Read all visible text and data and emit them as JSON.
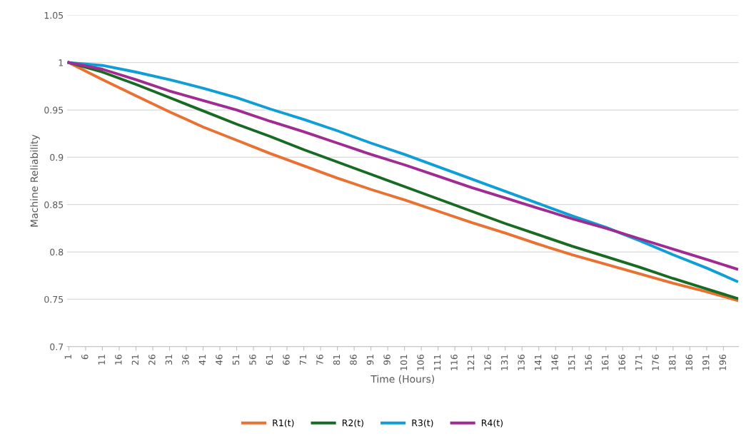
{
  "chart_data": {
    "type": "line",
    "xlabel": "Time (Hours)",
    "ylabel": "Machine Reliability",
    "x": [
      1,
      11,
      21,
      31,
      41,
      51,
      61,
      71,
      81,
      91,
      101,
      111,
      121,
      131,
      141,
      151,
      161,
      171,
      181,
      191,
      200
    ],
    "series": [
      {
        "name": "R1(t)",
        "color": "#e97132",
        "values": [
          1.0,
          0.982,
          0.965,
          0.948,
          0.932,
          0.918,
          0.904,
          0.891,
          0.878,
          0.866,
          0.855,
          0.843,
          0.831,
          0.82,
          0.808,
          0.797,
          0.787,
          0.777,
          0.767,
          0.758,
          0.749
        ]
      },
      {
        "name": "R2(t)",
        "color": "#196b24",
        "values": [
          1.0,
          0.99,
          0.977,
          0.963,
          0.949,
          0.935,
          0.922,
          0.908,
          0.895,
          0.882,
          0.869,
          0.856,
          0.843,
          0.83,
          0.818,
          0.806,
          0.795,
          0.784,
          0.772,
          0.761,
          0.751
        ]
      },
      {
        "name": "R3(t)",
        "color": "#0f9ed5",
        "values": [
          1.0,
          0.997,
          0.99,
          0.982,
          0.973,
          0.963,
          0.951,
          0.94,
          0.928,
          0.915,
          0.903,
          0.89,
          0.877,
          0.864,
          0.851,
          0.838,
          0.826,
          0.812,
          0.797,
          0.783,
          0.769
        ]
      },
      {
        "name": "R4(t)",
        "color": "#a02b93",
        "values": [
          1.0,
          0.993,
          0.982,
          0.97,
          0.96,
          0.95,
          0.938,
          0.927,
          0.915,
          0.903,
          0.892,
          0.88,
          0.868,
          0.857,
          0.846,
          0.835,
          0.825,
          0.814,
          0.803,
          0.792,
          0.782
        ]
      }
    ],
    "xlim": [
      0.5,
      200.5
    ],
    "xticks": [
      1,
      6,
      11,
      16,
      21,
      26,
      31,
      36,
      41,
      46,
      51,
      56,
      61,
      66,
      71,
      76,
      81,
      86,
      91,
      96,
      101,
      106,
      111,
      116,
      121,
      126,
      131,
      136,
      141,
      146,
      151,
      156,
      161,
      166,
      171,
      176,
      181,
      186,
      191,
      196
    ],
    "ylim": [
      0.7,
      1.05
    ],
    "yticks": [
      0.7,
      0.75,
      0.8,
      0.85,
      0.9,
      0.95,
      1,
      1.05
    ],
    "grid": "y",
    "legend": "bottom",
    "marker": "none",
    "line_style": "solid"
  }
}
